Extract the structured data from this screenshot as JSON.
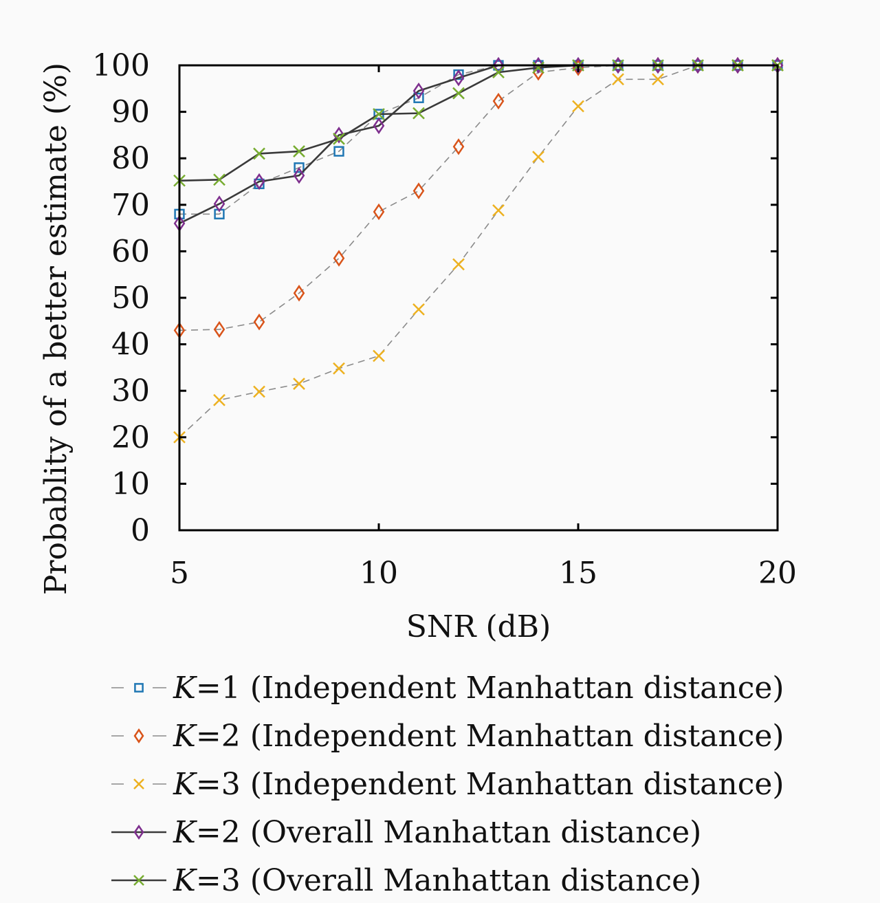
{
  "chart_data": {
    "type": "line",
    "title": "",
    "xlabel": "SNR (dB)",
    "ylabel": "Probablity of a better estimate (%)",
    "xlim": [
      5,
      20
    ],
    "ylim": [
      0,
      100
    ],
    "xticks": [
      "5",
      "10",
      "15",
      "20"
    ],
    "yticks": [
      "0",
      "10",
      "20",
      "30",
      "40",
      "50",
      "60",
      "70",
      "80",
      "90",
      "100"
    ],
    "grid": false,
    "legend_position": "bottom",
    "x": [
      5,
      6,
      7,
      8,
      9,
      10,
      11,
      12,
      13,
      14,
      15,
      16,
      17,
      18,
      19,
      20
    ],
    "series": [
      {
        "name": "K=1 (Independent Manhattan distance)",
        "legend_k": "K",
        "legend_rest": "=1 (Independent Manhattan distance)",
        "marker": "square",
        "line_style": "dashed",
        "color": "#1f77b4",
        "values": [
          68,
          68,
          74.5,
          78,
          81.5,
          89.5,
          93,
          98,
          100,
          100,
          100,
          100,
          100,
          100,
          100,
          100
        ]
      },
      {
        "name": "K=2 (Independent Manhattan distance)",
        "legend_k": "K",
        "legend_rest": "=2 (Independent Manhattan distance)",
        "marker": "diamond",
        "line_style": "dashed",
        "color": "#d9541a",
        "values": [
          43,
          43.2,
          44.8,
          51,
          58.5,
          68.5,
          73,
          82.5,
          92.3,
          98.5,
          99.5,
          100,
          100,
          100,
          100,
          100
        ]
      },
      {
        "name": "K=3 (Independent Manhattan distance)",
        "legend_k": "K",
        "legend_rest": "=3 (Independent Manhattan distance)",
        "marker": "x",
        "line_style": "dashed",
        "color": "#edb120",
        "values": [
          20,
          28,
          29.8,
          31.5,
          34.8,
          37.5,
          47.5,
          57.2,
          68.8,
          80.3,
          91.2,
          97,
          97,
          100,
          100,
          100
        ]
      },
      {
        "name": "K=2 (Overall Manhattan distance)",
        "legend_k": "K",
        "legend_rest": "=2 (Overall Manhattan distance)",
        "marker": "diamond",
        "line_style": "solid",
        "color": "#7e2f8e",
        "values": [
          66,
          70.2,
          75,
          76.3,
          85,
          87,
          94.5,
          97.3,
          100,
          100,
          100,
          100,
          100,
          100,
          100,
          100
        ]
      },
      {
        "name": "K=3 (Overall Manhattan distance)",
        "legend_k": "K",
        "legend_rest": "=3 (Overall Manhattan distance)",
        "marker": "x",
        "line_style": "solid",
        "color": "#77ac30",
        "values": [
          75.2,
          75.4,
          81,
          81.5,
          84.2,
          89.5,
          89.7,
          94,
          98.5,
          99.5,
          100,
          100,
          100,
          100,
          100,
          100
        ]
      }
    ]
  }
}
